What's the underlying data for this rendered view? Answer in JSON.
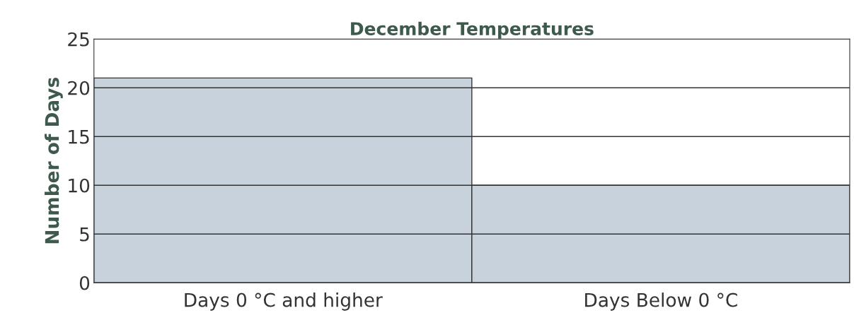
{
  "chart_data": {
    "type": "bar",
    "title": "December Temperatures",
    "ylabel": "Number of Days",
    "categories": [
      "Days 0 °C and higher",
      "Days Below 0 °C"
    ],
    "values": [
      21,
      10
    ],
    "color": "#c8d2dc",
    "ylim": [
      0,
      25
    ],
    "yticks": [
      0,
      5,
      10,
      15,
      20,
      25
    ],
    "grid": "y"
  }
}
